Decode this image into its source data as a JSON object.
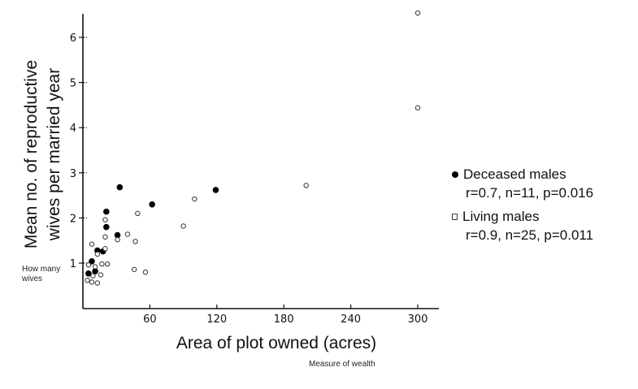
{
  "chart_data": {
    "type": "scatter",
    "xlabel": "Area of plot owned (acres)",
    "ylabel_line1": "Mean no. of reproductive",
    "ylabel_line2": "wives per married year",
    "x_ticks": [
      0,
      60,
      120,
      180,
      240,
      300
    ],
    "x_tick_labels": [
      "",
      "60",
      "120",
      "180",
      "240",
      "300"
    ],
    "y_ticks": [
      1,
      2,
      3,
      4,
      5,
      6
    ],
    "y_tick_labels": [
      "1",
      "2",
      "3",
      "4",
      "5",
      "6"
    ],
    "xlim": [
      0,
      320
    ],
    "ylim": [
      -0.1,
      6.8
    ],
    "grid": false,
    "legend_position": "right",
    "series": [
      {
        "name": "Deceased males",
        "marker": "filled-circle",
        "stats": "r=0.7, n=11, p=0.016",
        "points": [
          {
            "x": 33,
            "y": 2.68
          },
          {
            "x": 62,
            "y": 2.3
          },
          {
            "x": 119,
            "y": 2.62
          },
          {
            "x": 21,
            "y": 2.14
          },
          {
            "x": 21,
            "y": 1.8
          },
          {
            "x": 31,
            "y": 1.62
          },
          {
            "x": 13,
            "y": 1.28
          },
          {
            "x": 18,
            "y": 1.26
          },
          {
            "x": 8,
            "y": 1.04
          },
          {
            "x": 11,
            "y": 0.82
          },
          {
            "x": 5,
            "y": 0.77
          }
        ]
      },
      {
        "name": "Living males",
        "marker": "open-circle",
        "stats": "r=0.9, n=25, p=0.011",
        "points": [
          {
            "x": 300,
            "y": 6.54
          },
          {
            "x": 300,
            "y": 4.44
          },
          {
            "x": 200,
            "y": 2.72
          },
          {
            "x": 100,
            "y": 2.42
          },
          {
            "x": 90,
            "y": 1.82
          },
          {
            "x": 49,
            "y": 2.1
          },
          {
            "x": 40,
            "y": 1.64
          },
          {
            "x": 47,
            "y": 1.48
          },
          {
            "x": 31,
            "y": 1.52
          },
          {
            "x": 20,
            "y": 1.96
          },
          {
            "x": 20,
            "y": 1.58
          },
          {
            "x": 20,
            "y": 1.32
          },
          {
            "x": 8,
            "y": 1.42
          },
          {
            "x": 13,
            "y": 1.2
          },
          {
            "x": 22,
            "y": 0.98
          },
          {
            "x": 17,
            "y": 0.98
          },
          {
            "x": 46,
            "y": 0.86
          },
          {
            "x": 56,
            "y": 0.8
          },
          {
            "x": 5,
            "y": 0.96
          },
          {
            "x": 11,
            "y": 0.92
          },
          {
            "x": 9,
            "y": 0.72
          },
          {
            "x": 16,
            "y": 0.74
          },
          {
            "x": 4,
            "y": 0.62
          },
          {
            "x": 8,
            "y": 0.58
          },
          {
            "x": 13,
            "y": 0.56
          }
        ]
      }
    ]
  },
  "annotations": {
    "y_note": "How many wives",
    "x_note": "Measure of wealth"
  }
}
